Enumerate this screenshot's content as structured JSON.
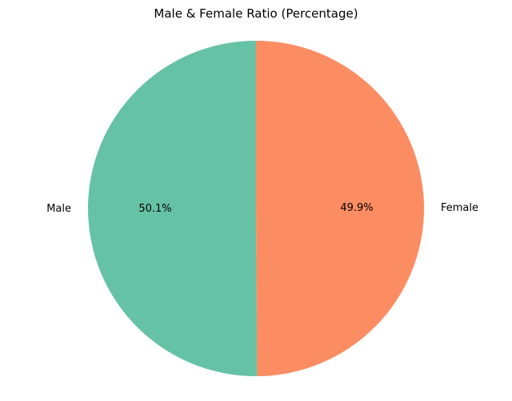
{
  "chart_data": {
    "type": "pie",
    "title": "Male & Female Ratio (Percentage)",
    "categories": [
      "Male",
      "Female"
    ],
    "values": [
      50.1,
      49.9
    ],
    "percent_labels": [
      "50.1%",
      "49.9%"
    ],
    "colors": [
      "#66c2a5",
      "#fc8d62"
    ],
    "start_angle_deg": 90,
    "direction": "counterclockwise",
    "legend": "none"
  }
}
